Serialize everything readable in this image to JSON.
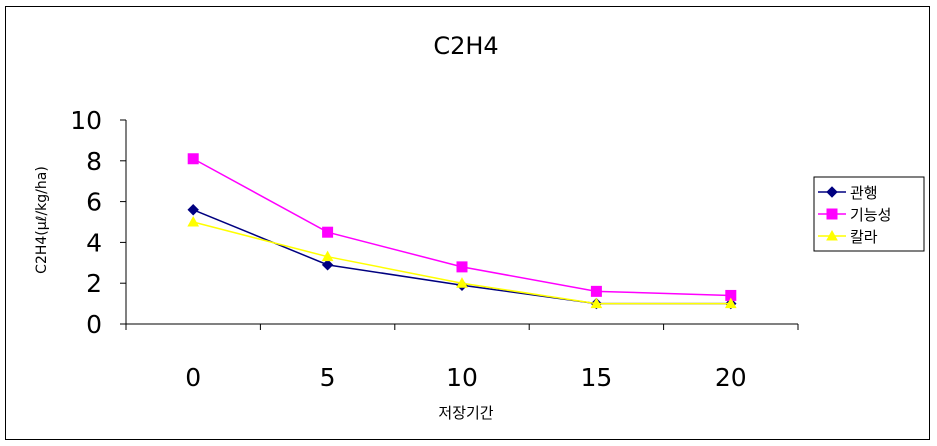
{
  "chart_data": {
    "type": "line",
    "title": "C2H4",
    "xlabel": "저장기간",
    "ylabel": "C2H4(μℓ/kg/ha)",
    "x": [
      0,
      5,
      10,
      15,
      20
    ],
    "x_tick_labels": [
      "0",
      "5",
      "10",
      "15",
      "20"
    ],
    "y_tick_labels": [
      "0",
      "2",
      "4",
      "6",
      "8",
      "10"
    ],
    "ylim": [
      0,
      10
    ],
    "grid": false,
    "legend_position": "right",
    "series": [
      {
        "name": "관행",
        "values": [
          5.6,
          2.9,
          1.9,
          1.0,
          1.0
        ],
        "color": "#000080",
        "marker": "diamond"
      },
      {
        "name": "기능성",
        "values": [
          8.1,
          4.5,
          2.8,
          1.6,
          1.4
        ],
        "color": "#FF00FF",
        "marker": "square"
      },
      {
        "name": "칼라",
        "values": [
          5.0,
          3.3,
          2.0,
          1.0,
          1.0
        ],
        "color": "#FFFF00",
        "marker": "triangle"
      }
    ]
  }
}
